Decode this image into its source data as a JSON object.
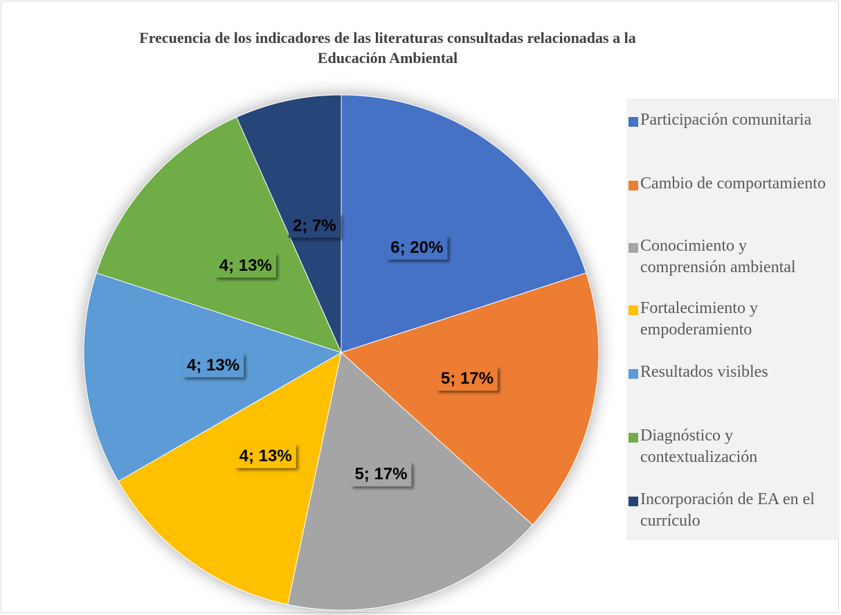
{
  "chart_data": {
    "type": "pie",
    "title": "Frecuencia de los indicadores de las literaturas consultadas relacionadas a la Educación Ambiental",
    "categories": [
      "Participación comunitaria",
      "Cambio de comportamiento",
      "Conocimiento y comprensión ambiental",
      "Fortalecimiento y empoderamiento",
      "Resultados visibles",
      "Diagnóstico y contextualización",
      "Incorporación de EA en el currículo"
    ],
    "values": [
      6,
      5,
      5,
      4,
      4,
      4,
      2
    ],
    "value_labels": [
      "6; 20%",
      "5; 17%",
      "5; 17%",
      "4; 13%",
      "4; 13%",
      "4; 13%",
      "2; 7%"
    ],
    "colors": [
      "#4472c4",
      "#ed7d31",
      "#a5a5a5",
      "#ffc000",
      "#5b9bd5",
      "#70ad47",
      "#264478"
    ],
    "legend": "right"
  }
}
